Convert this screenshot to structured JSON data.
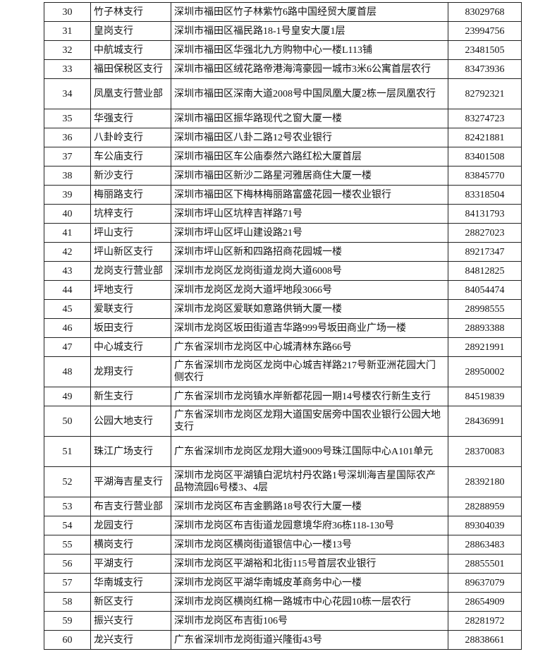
{
  "table": {
    "rows": [
      [
        "30",
        "竹子林支行",
        "深圳市福田区竹子林紫竹6路中国经贸大厦首层",
        "83029768"
      ],
      [
        "31",
        "皇岗支行",
        "深圳市福田区福民路18-1号皇安大厦1层",
        "23994756"
      ],
      [
        "32",
        "中航城支行",
        "深圳市福田区华强北九方购物中心一楼L113铺",
        "23481505"
      ],
      [
        "33",
        "福田保税区支行",
        "深圳市福田区绒花路帝港海湾豪园一城市3米6公寓首层农行",
        "83473936"
      ],
      [
        "34",
        "凤凰支行营业部",
        "深圳市福田区深南大道2008号中国凤凰大厦2栋一层凤凰农行",
        "82792321"
      ],
      [
        "35",
        "华强支行",
        "深圳市福田区振华路现代之窗大厦一楼",
        "83274723"
      ],
      [
        "36",
        "八卦岭支行",
        "深圳市福田区八卦二路12号农业银行",
        "82421881"
      ],
      [
        "37",
        "车公庙支行",
        "深圳市福田区车公庙泰然六路红松大厦首层",
        "83401508"
      ],
      [
        "38",
        "新沙支行",
        "深圳市福田区新沙二路星河雅居商住大厦一楼",
        "83845770"
      ],
      [
        "39",
        "梅丽路支行",
        "深圳市福田区下梅林梅丽路富盛花园一楼农业银行",
        "83318504"
      ],
      [
        "40",
        "坑梓支行",
        "深圳市坪山区坑梓吉祥路71号",
        "84131793"
      ],
      [
        "41",
        "坪山支行",
        "深圳市坪山区坪山建设路21号",
        "28827023"
      ],
      [
        "42",
        "坪山新区支行",
        "深圳市坪山区新和四路招商花园城一楼",
        "89217347"
      ],
      [
        "43",
        "龙岗支行营业部",
        "深圳市龙岗区龙岗街道龙岗大道6008号",
        "84812825"
      ],
      [
        "44",
        "坪地支行",
        "深圳市龙岗区龙岗大道坪地段3066号",
        "84054474"
      ],
      [
        "45",
        "爱联支行",
        "深圳市龙岗区爱联如意路供销大厦一楼",
        "28998555"
      ],
      [
        "46",
        "坂田支行",
        "深圳市龙岗区坂田街道吉华路999号坂田商业广场一楼",
        "28893388"
      ],
      [
        "47",
        "中心城支行",
        "广东省深圳市龙岗区中心城清林东路66号",
        "28921991"
      ],
      [
        "48",
        "龙翔支行",
        "广东省深圳市龙岗区龙岗中心城吉祥路217号新亚洲花园大门侧农行",
        "28950002"
      ],
      [
        "49",
        "新生支行",
        "广东省深圳市龙岗镇水岸新都花园一期14号楼农行新生支行",
        "84519839"
      ],
      [
        "50",
        "公园大地支行",
        "广东省深圳市龙岗区龙翔大道国安居旁中国农业银行公园大地支行",
        "28436991"
      ],
      [
        "51",
        "珠江广场支行",
        "广东省深圳市龙岗区龙翔大道9009号珠江国际中心A101单元",
        "28370083"
      ],
      [
        "52",
        "平湖海吉星支行",
        "深圳市龙岗区平湖镇白泥坑村丹农路1号深圳海吉星国际农产品物流园6号楼3、4层",
        "28392180"
      ],
      [
        "53",
        "布吉支行营业部",
        "深圳市龙岗区布吉金鹏路18号农行大厦一楼",
        "28288959"
      ],
      [
        "54",
        "龙园支行",
        "深圳市龙岗区布吉街道龙园意境华府36栋118-130号",
        "89304039"
      ],
      [
        "55",
        "横岗支行",
        "深圳市龙岗区横岗街道银信中心一楼13号",
        "28863483"
      ],
      [
        "56",
        "平湖支行",
        "深圳市龙岗区平湖裕和北街115号首层农业银行",
        "28855501"
      ],
      [
        "57",
        "华南城支行",
        "深圳市龙岗区平湖华南城皮革商务中心一楼",
        "89637079"
      ],
      [
        "58",
        "新区支行",
        "深圳市龙岗区横岗红棉一路城市中心花园10栋一层农行",
        "28654909"
      ],
      [
        "59",
        "振兴支行",
        "深圳市龙岗区布吉街106号",
        "28281972"
      ],
      [
        "60",
        "龙兴支行",
        "广东省深圳市龙岗街道兴隆街43号",
        "28838661"
      ]
    ]
  }
}
